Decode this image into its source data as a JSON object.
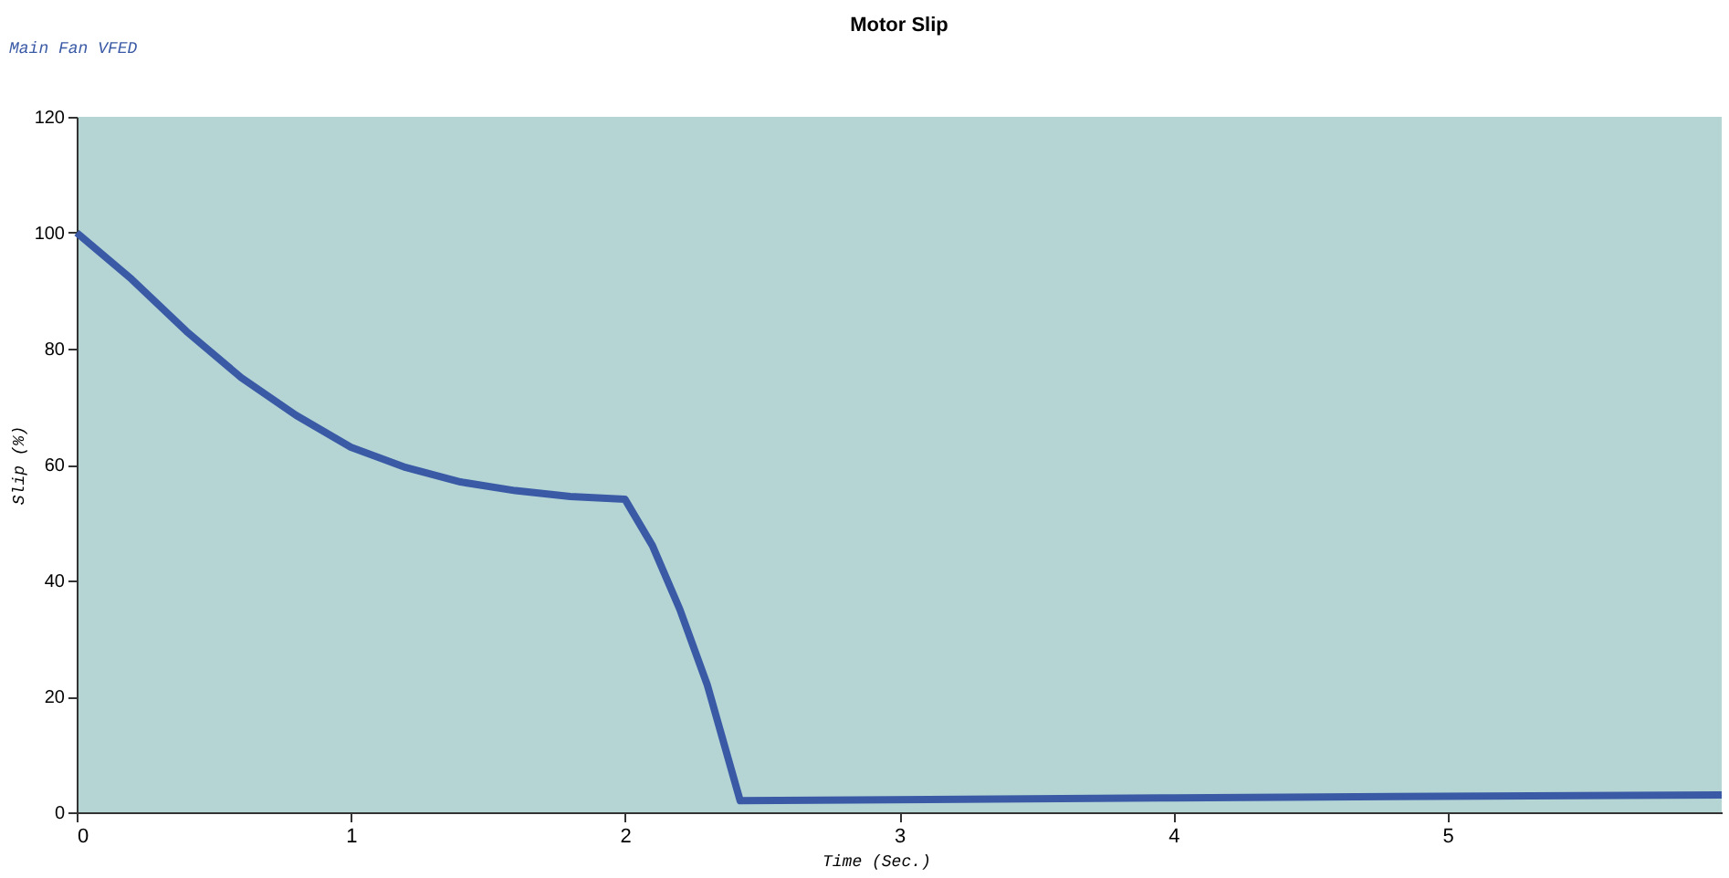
{
  "chart_data": {
    "type": "line",
    "title": "Motor Slip",
    "xlabel": "Time (Sec.)",
    "ylabel": "Slip (%)",
    "x": [
      0,
      0.2,
      0.4,
      0.6,
      0.8,
      1.0,
      1.2,
      1.4,
      1.6,
      1.8,
      2.0,
      2.1,
      2.2,
      2.3,
      2.42,
      4,
      6
    ],
    "series": [
      {
        "name": "Main Fan VFED",
        "color": "#3a5aa6",
        "values": [
          100,
          92,
          83,
          75,
          68.5,
          63,
          59.5,
          57,
          55.5,
          54.5,
          54,
          46,
          35,
          22,
          2,
          2.5,
          3
        ]
      }
    ],
    "xlim": [
      0,
      6
    ],
    "xticks": [
      0,
      1,
      2,
      3,
      4,
      5
    ],
    "ylim": [
      0,
      120
    ],
    "yticks": [
      0,
      20,
      40,
      60,
      80,
      100,
      120
    ],
    "legend": "top left",
    "grid": false,
    "marker": "none",
    "line_style": "solid"
  }
}
